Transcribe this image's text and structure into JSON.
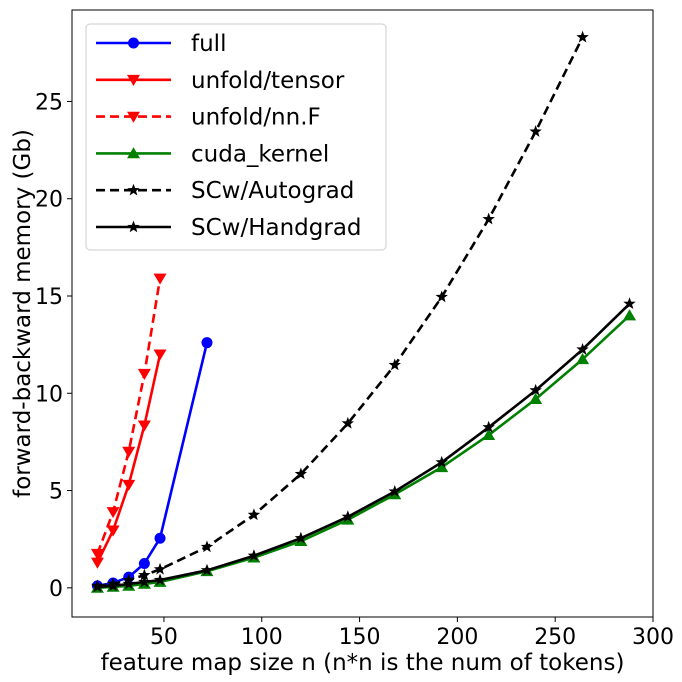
{
  "chart_data": {
    "type": "line",
    "xlabel": "feature map size n (n*n is the num of tokens)",
    "ylabel": "forward-backward memory (Gb)",
    "xlim": [
      3,
      300
    ],
    "ylim": [
      -1.5,
      29.7
    ],
    "xticks": [
      50,
      100,
      150,
      200,
      250,
      300
    ],
    "yticks": [
      0,
      5,
      10,
      15,
      20,
      25
    ],
    "grid": false,
    "legend_position": "top-left",
    "series": [
      {
        "name": "full",
        "color": "#0000ff",
        "line_style": "solid",
        "marker": "circle",
        "x": [
          16,
          24,
          32,
          40,
          48,
          72
        ],
        "y": [
          0.1,
          0.25,
          0.55,
          1.25,
          2.55,
          12.6
        ]
      },
      {
        "name": "unfold/tensor",
        "color": "#ff0000",
        "line_style": "solid",
        "marker": "triangle-down",
        "x": [
          16,
          24,
          32,
          40,
          48
        ],
        "y": [
          1.3,
          2.95,
          5.3,
          8.35,
          12.0
        ]
      },
      {
        "name": "unfold/nn.F",
        "color": "#ff0000",
        "line_style": "dashed",
        "marker": "triangle-down",
        "x": [
          16,
          24,
          32,
          40,
          48
        ],
        "y": [
          1.75,
          3.9,
          7.0,
          11.0,
          15.9
        ]
      },
      {
        "name": "cuda_kernel",
        "color": "#008000",
        "line_style": "solid",
        "marker": "triangle-up",
        "x": [
          16,
          24,
          32,
          40,
          48,
          72,
          96,
          120,
          144,
          168,
          192,
          216,
          240,
          264,
          288
        ],
        "y": [
          0.0,
          0.05,
          0.1,
          0.2,
          0.3,
          0.85,
          1.55,
          2.4,
          3.5,
          4.8,
          6.2,
          7.85,
          9.7,
          11.75,
          14.0
        ]
      },
      {
        "name": "SCw/Autograd",
        "color": "#000000",
        "line_style": "dashed",
        "marker": "star",
        "x": [
          16,
          24,
          32,
          40,
          48,
          72,
          96,
          120,
          144,
          168,
          192,
          216,
          240,
          264
        ],
        "y": [
          0.1,
          0.2,
          0.4,
          0.65,
          0.95,
          2.1,
          3.75,
          5.85,
          8.45,
          11.45,
          14.95,
          18.95,
          23.45,
          28.3
        ]
      },
      {
        "name": "SCw/Handgrad",
        "color": "#000000",
        "line_style": "solid",
        "marker": "star",
        "x": [
          16,
          24,
          32,
          40,
          48,
          72,
          96,
          120,
          144,
          168,
          192,
          216,
          240,
          264,
          288
        ],
        "y": [
          0.05,
          0.1,
          0.2,
          0.3,
          0.4,
          0.9,
          1.65,
          2.55,
          3.65,
          4.95,
          6.45,
          8.25,
          10.15,
          12.25,
          14.6
        ]
      }
    ]
  }
}
